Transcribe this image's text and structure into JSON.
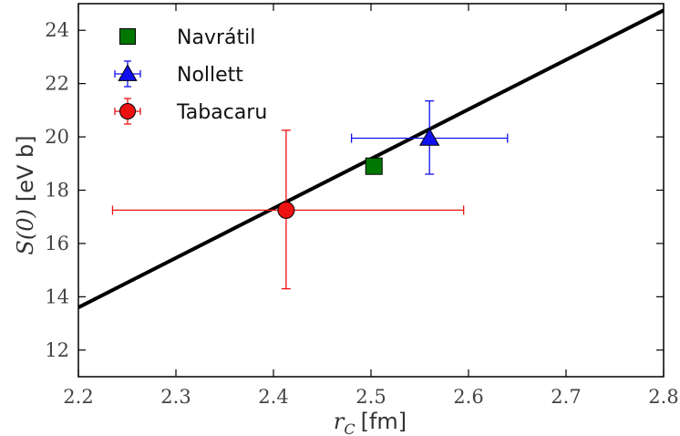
{
  "chart_data": {
    "type": "scatter",
    "xlabel": {
      "symbol": "r",
      "subscript": "C",
      "unit": "[fm]"
    },
    "ylabel": {
      "symbol": "S(0)",
      "unit": "[eV b]"
    },
    "xlim": [
      2.2,
      2.8
    ],
    "ylim": [
      11.0,
      25.0
    ],
    "xticks": [
      2.2,
      2.3,
      2.4,
      2.5,
      2.6,
      2.7,
      2.8
    ],
    "yticks": [
      12,
      14,
      16,
      18,
      20,
      22,
      24
    ],
    "grid": false,
    "legend_placement": "top-left",
    "fit_line": {
      "x": [
        2.2,
        2.8
      ],
      "y": [
        13.6,
        24.75
      ],
      "color": "#000000"
    },
    "series": [
      {
        "name": "Navrátil",
        "marker": "square",
        "color": "#007700",
        "x": 2.503,
        "y": 18.9
      },
      {
        "name": "Nollett",
        "marker": "triangle",
        "color": "#1010ee",
        "x": 2.56,
        "y": 19.95,
        "xerr": [
          2.48,
          2.64
        ],
        "yerr": [
          18.6,
          21.35
        ]
      },
      {
        "name": "Tabacaru",
        "marker": "circle",
        "color": "#ee1111",
        "x": 2.413,
        "y": 17.25,
        "xerr": [
          2.235,
          2.595
        ],
        "yerr": [
          14.3,
          20.25
        ]
      }
    ]
  }
}
